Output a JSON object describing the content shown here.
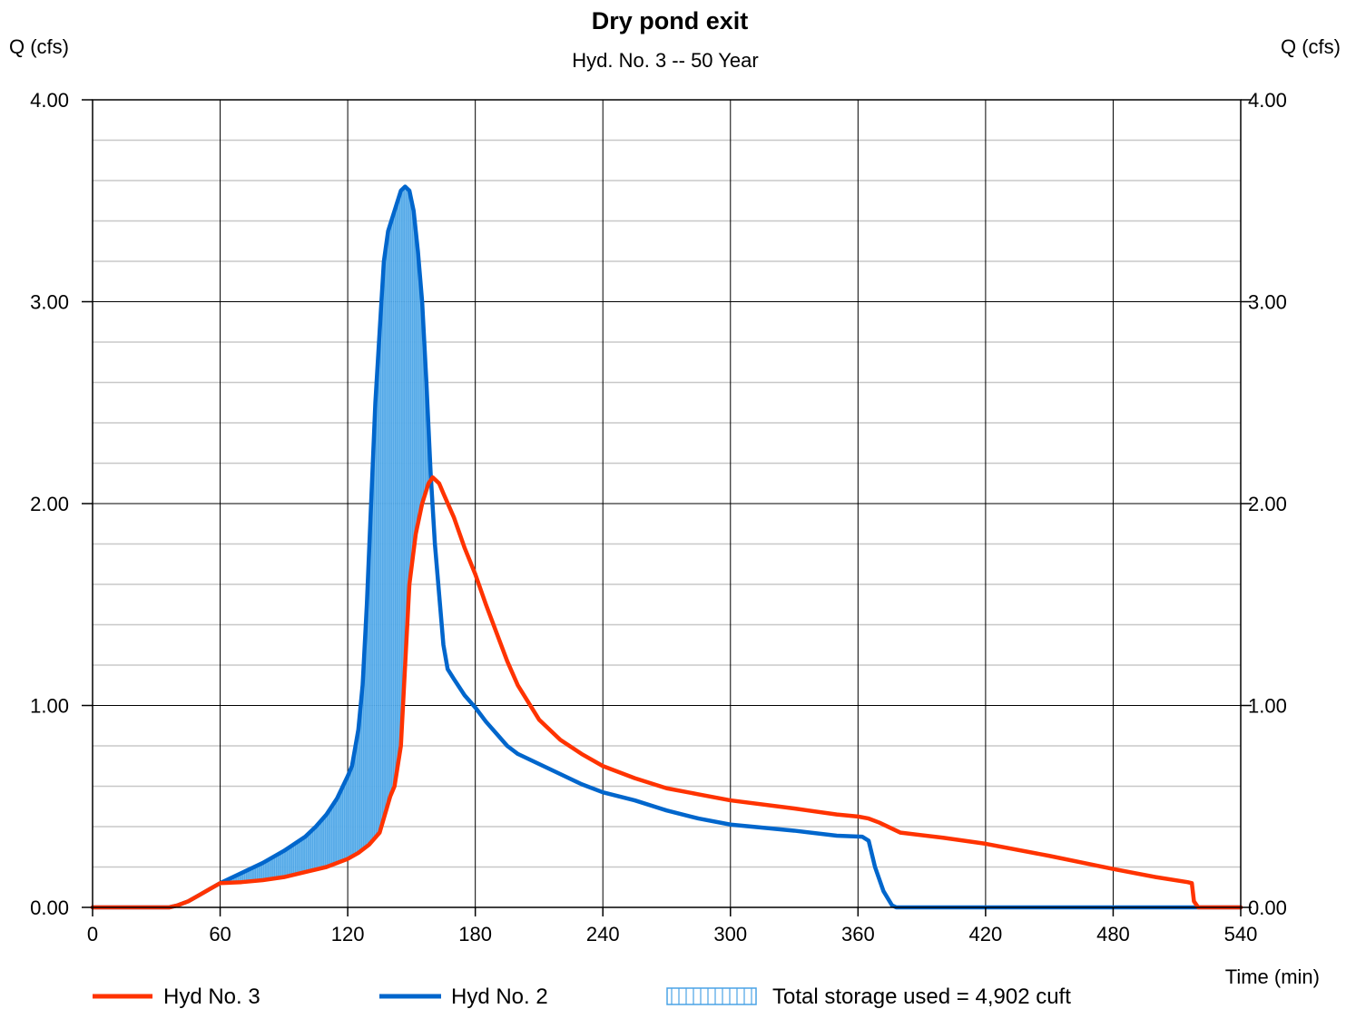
{
  "chart_data": {
    "type": "line",
    "title": "Dry pond exit",
    "subtitle": "Hyd. No. 3 -- 50 Year",
    "ylabel_left": "Q (cfs)",
    "ylabel_right": "Q (cfs)",
    "xlabel": "Time (min)",
    "xlim": [
      0,
      540
    ],
    "ylim": [
      0,
      4
    ],
    "x_ticks": [
      0,
      60,
      120,
      180,
      240,
      300,
      360,
      420,
      480,
      540
    ],
    "x_tick_labels": [
      "0",
      "60",
      "120",
      "180",
      "240",
      "300",
      "360",
      "420",
      "480",
      "540"
    ],
    "y_ticks": [
      0,
      1,
      2,
      3,
      4
    ],
    "y_tick_labels": [
      "0.00",
      "1.00",
      "2.00",
      "3.00",
      "4.00"
    ],
    "grid": true,
    "legend_position": "bottom",
    "series": [
      {
        "name": "Hyd No. 3",
        "color": "#ff3300",
        "points": [
          [
            0,
            0
          ],
          [
            36,
            0
          ],
          [
            40,
            0.01
          ],
          [
            45,
            0.03
          ],
          [
            50,
            0.06
          ],
          [
            55,
            0.09
          ],
          [
            60,
            0.12
          ],
          [
            70,
            0.125
          ],
          [
            80,
            0.135
          ],
          [
            90,
            0.15
          ],
          [
            100,
            0.175
          ],
          [
            110,
            0.2
          ],
          [
            120,
            0.24
          ],
          [
            125,
            0.27
          ],
          [
            130,
            0.31
          ],
          [
            135,
            0.37
          ],
          [
            140,
            0.55
          ],
          [
            142,
            0.6
          ],
          [
            145,
            0.8
          ],
          [
            147,
            1.2
          ],
          [
            149,
            1.6
          ],
          [
            152,
            1.85
          ],
          [
            155,
            2.0
          ],
          [
            158,
            2.1
          ],
          [
            160,
            2.13
          ],
          [
            163,
            2.1
          ],
          [
            165,
            2.05
          ],
          [
            170,
            1.93
          ],
          [
            175,
            1.78
          ],
          [
            180,
            1.65
          ],
          [
            185,
            1.5
          ],
          [
            190,
            1.36
          ],
          [
            195,
            1.22
          ],
          [
            200,
            1.1
          ],
          [
            210,
            0.93
          ],
          [
            220,
            0.83
          ],
          [
            230,
            0.76
          ],
          [
            240,
            0.7
          ],
          [
            255,
            0.64
          ],
          [
            270,
            0.59
          ],
          [
            285,
            0.56
          ],
          [
            300,
            0.53
          ],
          [
            330,
            0.49
          ],
          [
            350,
            0.46
          ],
          [
            360,
            0.45
          ],
          [
            365,
            0.44
          ],
          [
            370,
            0.42
          ],
          [
            380,
            0.37
          ],
          [
            400,
            0.345
          ],
          [
            420,
            0.315
          ],
          [
            450,
            0.255
          ],
          [
            480,
            0.19
          ],
          [
            500,
            0.15
          ],
          [
            515,
            0.125
          ],
          [
            517,
            0.12
          ],
          [
            518,
            0.03
          ],
          [
            520,
            0
          ],
          [
            540,
            0
          ]
        ]
      },
      {
        "name": "Hyd No. 2",
        "color": "#0066cc",
        "points": [
          [
            0,
            0
          ],
          [
            36,
            0
          ],
          [
            40,
            0.01
          ],
          [
            45,
            0.03
          ],
          [
            50,
            0.06
          ],
          [
            55,
            0.09
          ],
          [
            60,
            0.12
          ],
          [
            70,
            0.17
          ],
          [
            80,
            0.22
          ],
          [
            90,
            0.28
          ],
          [
            100,
            0.35
          ],
          [
            105,
            0.4
          ],
          [
            110,
            0.46
          ],
          [
            115,
            0.54
          ],
          [
            120,
            0.65
          ],
          [
            122,
            0.7
          ],
          [
            125,
            0.88
          ],
          [
            127,
            1.1
          ],
          [
            129,
            1.5
          ],
          [
            131,
            2.0
          ],
          [
            133,
            2.5
          ],
          [
            135,
            2.85
          ],
          [
            137,
            3.2
          ],
          [
            139,
            3.35
          ],
          [
            142,
            3.45
          ],
          [
            145,
            3.55
          ],
          [
            147,
            3.57
          ],
          [
            149,
            3.55
          ],
          [
            151,
            3.45
          ],
          [
            153,
            3.25
          ],
          [
            155,
            3.0
          ],
          [
            157,
            2.6
          ],
          [
            159,
            2.15
          ],
          [
            161,
            1.8
          ],
          [
            163,
            1.55
          ],
          [
            165,
            1.3
          ],
          [
            167,
            1.18
          ],
          [
            170,
            1.13
          ],
          [
            175,
            1.05
          ],
          [
            180,
            0.99
          ],
          [
            185,
            0.92
          ],
          [
            190,
            0.86
          ],
          [
            195,
            0.8
          ],
          [
            200,
            0.76
          ],
          [
            210,
            0.71
          ],
          [
            220,
            0.66
          ],
          [
            230,
            0.61
          ],
          [
            240,
            0.57
          ],
          [
            255,
            0.53
          ],
          [
            270,
            0.48
          ],
          [
            285,
            0.44
          ],
          [
            300,
            0.41
          ],
          [
            330,
            0.38
          ],
          [
            350,
            0.355
          ],
          [
            362,
            0.35
          ],
          [
            365,
            0.33
          ],
          [
            368,
            0.2
          ],
          [
            372,
            0.08
          ],
          [
            376,
            0.01
          ],
          [
            378,
            0
          ],
          [
            540,
            0
          ]
        ]
      }
    ],
    "fill_between": {
      "label": "Total storage used = 4,902 cuft",
      "color": "#4aa3e6",
      "x_from": 60,
      "x_to": 160
    }
  }
}
